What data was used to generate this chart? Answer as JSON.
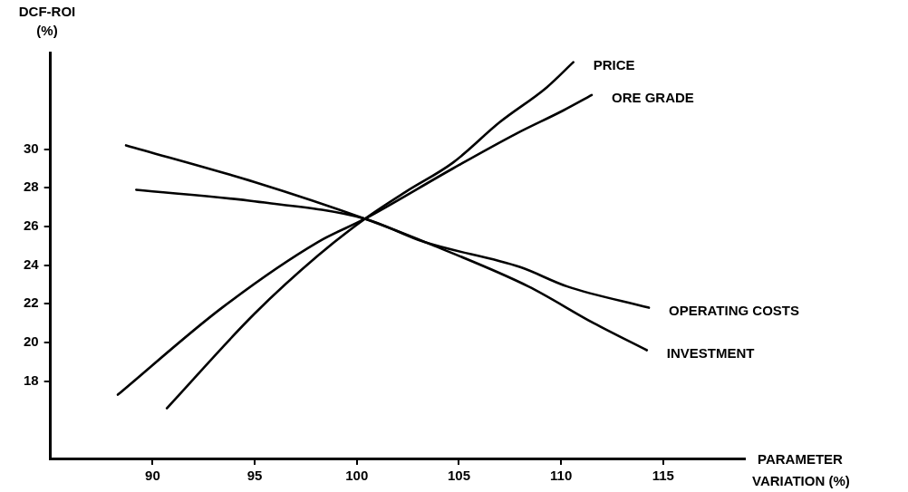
{
  "chart_data": {
    "type": "line",
    "xlabel": "PARAMETER VARIATION (%)",
    "ylabel": "DCF-ROI (%)",
    "xlim": [
      85,
      119
    ],
    "xticks": [
      90,
      95,
      100,
      105,
      110,
      115
    ],
    "ylim": [
      14,
      35
    ],
    "yticks": [
      18,
      20,
      22,
      24,
      26,
      28,
      30
    ],
    "grid": false,
    "legend": false,
    "marker": "none",
    "line_style": "solid",
    "series": [
      {
        "name": "PRICE",
        "color": "#000000",
        "x": [
          90.7,
          95.0,
          98.1,
          100.4,
          102.4,
          104.7,
          107.0,
          109.3,
          110.6
        ],
        "values": [
          16.6,
          21.5,
          24.5,
          26.4,
          27.8,
          29.3,
          31.4,
          33.2,
          34.5
        ]
      },
      {
        "name": "ORE GRADE",
        "color": "#000000",
        "x": [
          88.3,
          93.4,
          98.1,
          100.4,
          104.7,
          107.8,
          110.1,
          111.5
        ],
        "values": [
          17.3,
          21.8,
          25.2,
          26.4,
          29.0,
          30.8,
          32.0,
          32.8
        ]
      },
      {
        "name": "OPERATING COSTS",
        "color": "#000000",
        "x": [
          89.2,
          95.0,
          100.4,
          103.3,
          108.0,
          110.3,
          114.3
        ],
        "values": [
          27.9,
          27.3,
          26.4,
          25.2,
          23.9,
          22.9,
          21.8
        ]
      },
      {
        "name": "INVESTMENT",
        "color": "#000000",
        "x": [
          88.7,
          95.0,
          100.4,
          103.8,
          108.4,
          111.6,
          114.2
        ],
        "values": [
          30.2,
          28.3,
          26.4,
          25.0,
          22.9,
          21.0,
          19.6
        ]
      }
    ]
  }
}
